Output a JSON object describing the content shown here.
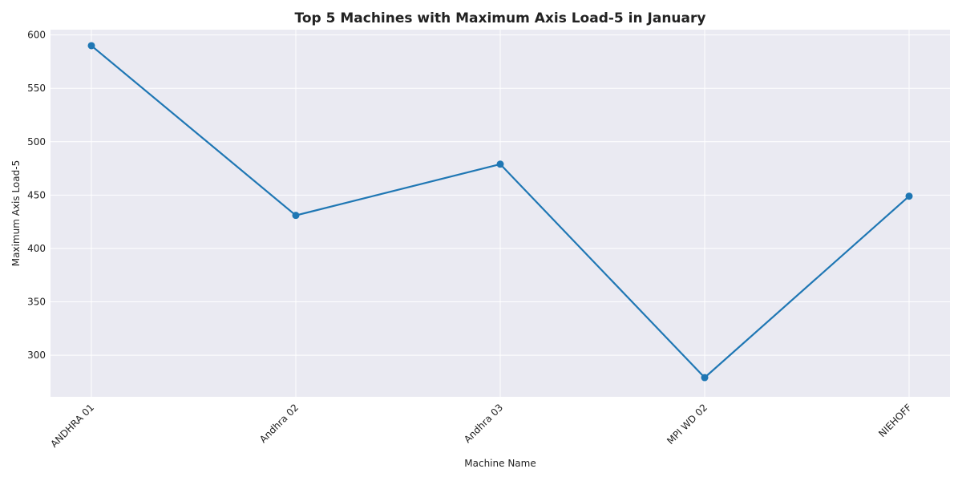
{
  "chart_data": {
    "type": "line",
    "title": "Top 5 Machines with Maximum Axis Load-5 in January",
    "xlabel": "Machine Name",
    "ylabel": "Maximum Axis Load-5",
    "categories": [
      "ANDHRA 01",
      "Andhra 02",
      "Andhra 03",
      "MPI WD 02",
      "NIEHOFF"
    ],
    "series": [
      {
        "values": [
          590,
          431,
          479,
          279,
          449
        ]
      }
    ],
    "yticks": [
      300,
      350,
      400,
      450,
      500,
      550,
      600
    ],
    "ylim": [
      261,
      605
    ],
    "grid": true,
    "legend": "none",
    "colors": {
      "line": "#1f77b4",
      "plot_background": "#eaeaf2",
      "grid": "#ffffff"
    }
  }
}
